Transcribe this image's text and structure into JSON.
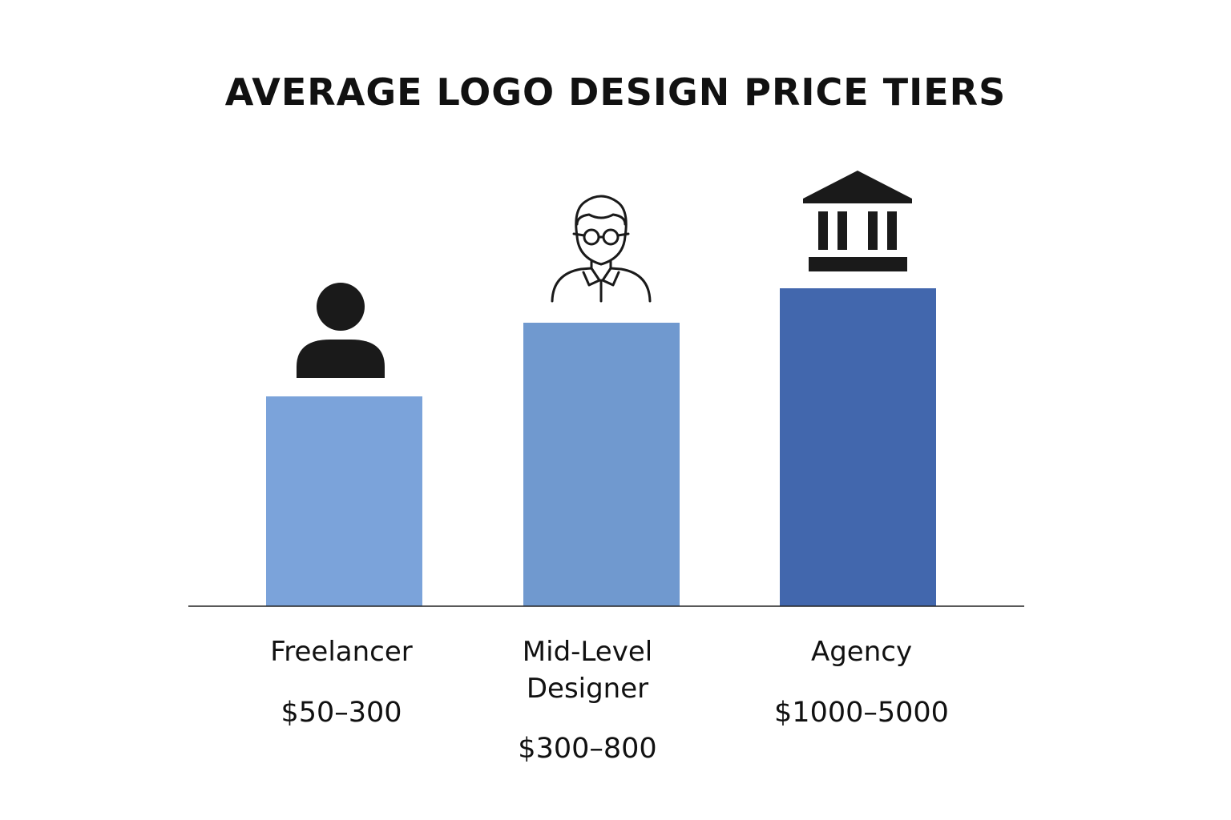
{
  "title": "AVERAGE LOGO DESIGN PRICE TIERS",
  "tiers": [
    {
      "name": "Freelancer",
      "price": "$50–300"
    },
    {
      "name": "Mid-Level Designer",
      "price": "$300–800"
    },
    {
      "name": "Agency",
      "price": "$1000–5000"
    }
  ]
}
